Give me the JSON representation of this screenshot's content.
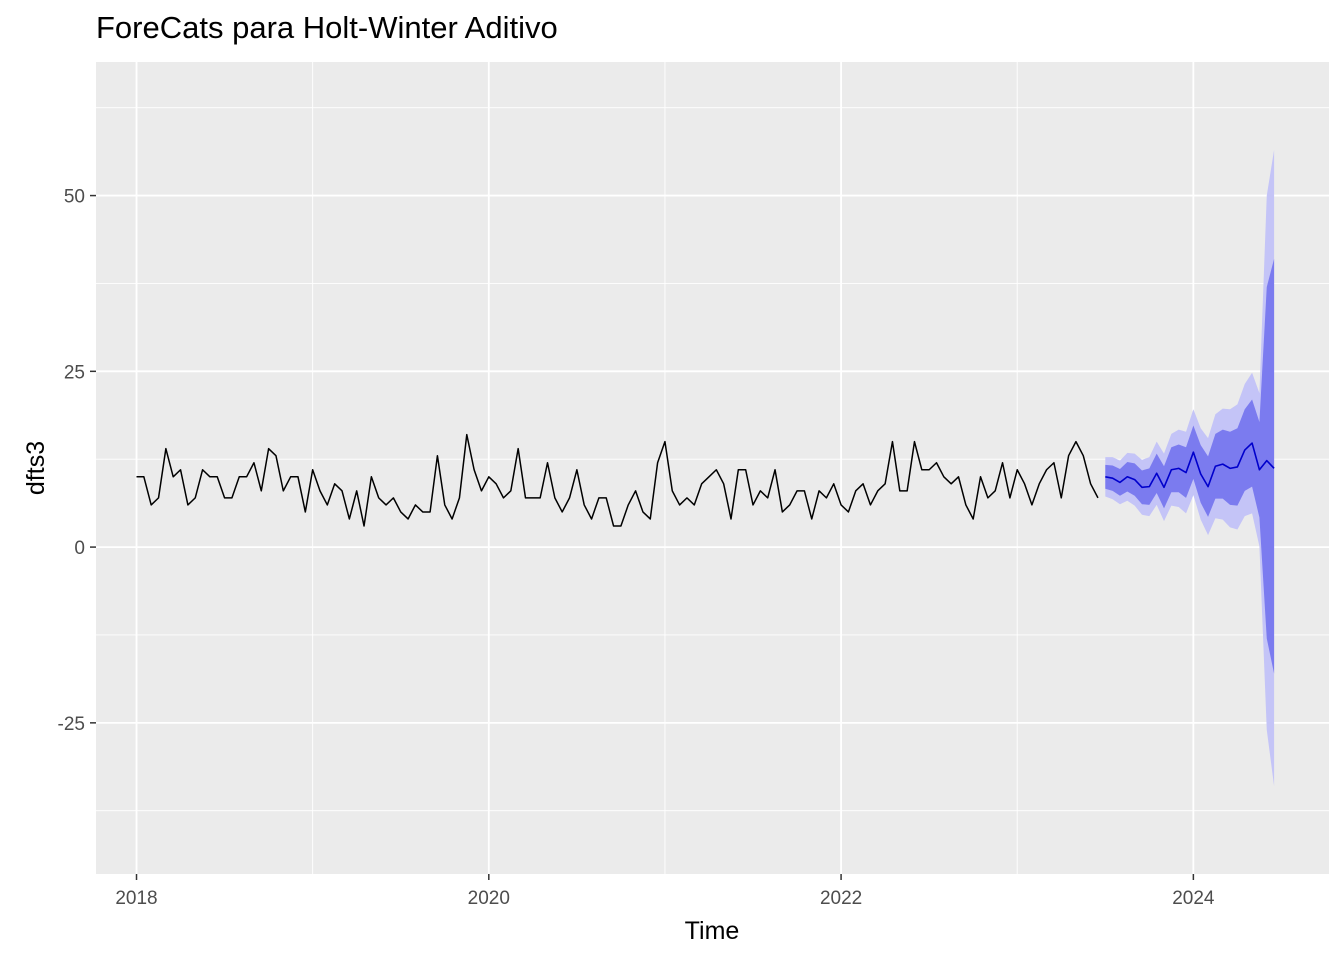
{
  "chart_data": {
    "type": "line",
    "title": "ForeCats para Holt-Winter Aditivo",
    "xlabel": "Time",
    "ylabel": "dfts3",
    "xlim": [
      2017.77,
      2024.77
    ],
    "ylim": [
      -46.5,
      69
    ],
    "x_ticks": [
      2018,
      2020,
      2022,
      2024
    ],
    "x_tick_labels": [
      "2018",
      "2020",
      "2022",
      "2024"
    ],
    "y_ticks": [
      -25,
      0,
      25,
      50
    ],
    "y_tick_labels": [
      "-25",
      "0",
      "25",
      "50"
    ],
    "grid": true,
    "colors": {
      "panel": "#ebebeb",
      "grid_major": "#ffffff",
      "observed": "#000000",
      "forecast": "#0000cc",
      "band80": "#7b7bef",
      "band95": "#c4c4f7"
    },
    "series": [
      {
        "name": "observed",
        "start": 2018,
        "frequency": 24,
        "values": [
          10,
          10,
          6,
          7,
          14,
          10,
          11,
          6,
          7,
          11,
          10,
          10,
          7,
          7,
          10,
          10,
          12,
          8,
          14,
          13,
          8,
          10,
          10,
          5,
          11,
          8,
          6,
          9,
          8,
          4,
          8,
          3,
          10,
          7,
          6,
          7,
          5,
          4,
          6,
          5,
          5,
          13,
          6,
          4,
          7,
          16,
          11,
          8,
          10,
          9,
          7,
          8,
          14,
          7,
          7,
          7,
          12,
          7,
          5,
          7,
          11,
          6,
          4,
          7,
          7,
          3,
          3,
          6,
          8,
          5,
          4,
          12,
          15,
          8,
          6,
          7,
          6,
          9,
          10,
          11,
          9,
          4,
          11,
          11,
          6,
          8,
          7,
          11,
          5,
          6,
          8,
          8,
          4,
          8,
          7,
          9,
          6,
          5,
          8,
          9,
          6,
          8,
          9,
          15,
          8,
          8,
          15,
          11,
          11,
          12,
          10,
          9,
          10,
          6,
          4,
          10,
          7,
          8,
          12,
          7,
          11,
          9,
          6,
          9,
          11,
          12,
          7,
          13,
          15,
          13,
          9,
          7
        ]
      },
      {
        "name": "forecast",
        "start": 2023.5,
        "frequency": 24,
        "values": [
          10,
          9.8,
          9.2,
          10,
          9.6,
          8.5,
          8.6,
          10.5,
          8.5,
          11,
          11.2,
          10.6,
          13.5,
          10.4,
          8.6,
          11.5,
          11.8,
          11.2,
          11.4,
          13.8,
          14.8,
          11,
          12.3,
          11.2
        ],
        "lo80": [
          8.3,
          8.0,
          7.3,
          7.9,
          7.3,
          6.1,
          6.0,
          7.7,
          5.5,
          7.8,
          7.8,
          7.0,
          9.7,
          6.3,
          4.3,
          6.9,
          6.9,
          6.0,
          5.9,
          8.0,
          8.6,
          4.2,
          -13,
          -18
        ],
        "hi80": [
          11.7,
          11.6,
          11.1,
          12.1,
          11.9,
          10.9,
          11.2,
          13.3,
          11.5,
          14.2,
          14.6,
          14.2,
          17.3,
          14.5,
          12.9,
          16.1,
          16.7,
          16.4,
          16.9,
          19.6,
          21.0,
          17.8,
          37,
          41
        ],
        "lo95": [
          7.2,
          6.8,
          6.1,
          6.6,
          5.9,
          4.6,
          4.4,
          6.0,
          3.7,
          5.9,
          5.7,
          4.8,
          7.4,
          3.9,
          1.7,
          4.1,
          3.9,
          2.8,
          2.5,
          4.4,
          4.8,
          0.1,
          -26,
          -34
        ],
        "hi95": [
          12.8,
          12.8,
          12.3,
          13.4,
          13.3,
          12.4,
          12.8,
          15.0,
          13.3,
          16.1,
          16.7,
          16.4,
          19.6,
          16.9,
          15.5,
          18.9,
          19.7,
          19.6,
          20.3,
          23.2,
          24.8,
          21.9,
          50,
          56.5
        ]
      }
    ]
  }
}
